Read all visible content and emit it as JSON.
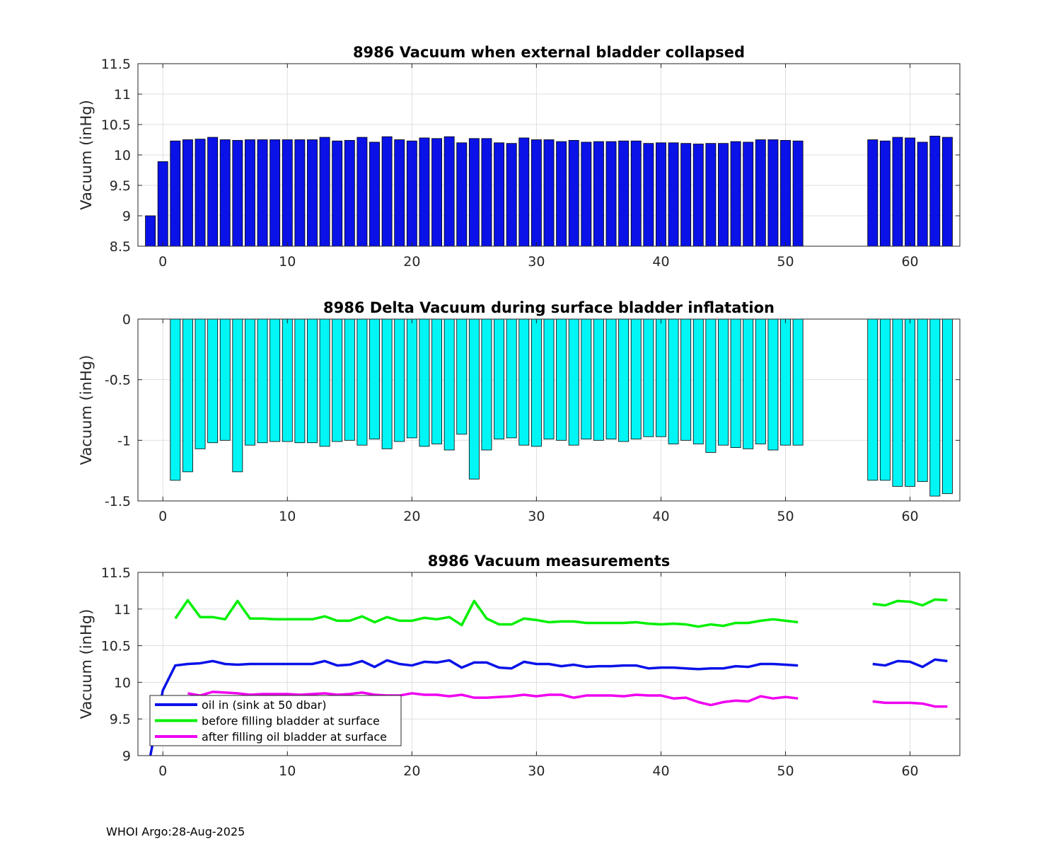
{
  "footer": "WHOI Argo:28-Aug-2025",
  "chart_data": [
    {
      "type": "bar",
      "title": "8986 Vacuum when external bladder collapsed",
      "xlabel": "",
      "ylabel": "Vacuum (inHg)",
      "xlim": [
        -2,
        64
      ],
      "ylim": [
        8.5,
        11.5
      ],
      "xticks": [
        0,
        10,
        20,
        30,
        40,
        50,
        60
      ],
      "yticks": [
        8.5,
        9,
        9.5,
        10,
        10.5,
        11,
        11.5
      ],
      "ytick_labels": [
        "8.5",
        "9",
        "9.5",
        "10",
        "10.5",
        "11",
        "11.5"
      ],
      "grid": true,
      "bar_color": "#0a12e8",
      "x": [
        -1,
        0,
        1,
        2,
        3,
        4,
        5,
        6,
        7,
        8,
        9,
        10,
        11,
        12,
        13,
        14,
        15,
        16,
        17,
        18,
        19,
        20,
        21,
        22,
        23,
        24,
        25,
        26,
        27,
        28,
        29,
        30,
        31,
        32,
        33,
        34,
        35,
        36,
        37,
        38,
        39,
        40,
        41,
        42,
        43,
        44,
        45,
        46,
        47,
        48,
        49,
        50,
        51,
        57,
        58,
        59,
        60,
        61,
        62,
        63
      ],
      "values": [
        9.0,
        9.89,
        10.23,
        10.25,
        10.26,
        10.29,
        10.25,
        10.24,
        10.25,
        10.25,
        10.25,
        10.25,
        10.25,
        10.25,
        10.29,
        10.23,
        10.24,
        10.29,
        10.21,
        10.3,
        10.25,
        10.23,
        10.28,
        10.27,
        10.3,
        10.2,
        10.27,
        10.27,
        10.2,
        10.19,
        10.28,
        10.25,
        10.25,
        10.22,
        10.24,
        10.21,
        10.22,
        10.22,
        10.23,
        10.23,
        10.19,
        10.2,
        10.2,
        10.19,
        10.18,
        10.19,
        10.19,
        10.22,
        10.21,
        10.25,
        10.25,
        10.24,
        10.23,
        10.25,
        10.23,
        10.29,
        10.28,
        10.21,
        10.31,
        10.29
      ]
    },
    {
      "type": "bar",
      "title": "8986 Delta Vacuum during surface bladder inflatation",
      "xlabel": "",
      "ylabel": "Vacuum (inHg)",
      "xlim": [
        -2,
        64
      ],
      "ylim": [
        -1.5,
        0
      ],
      "xticks": [
        0,
        10,
        20,
        30,
        40,
        50,
        60
      ],
      "yticks": [
        -1.5,
        -1,
        -0.5,
        0
      ],
      "ytick_labels": [
        "-1.5",
        "-1",
        "-0.5",
        "0"
      ],
      "grid": true,
      "bar_color": "#00f5f5",
      "x": [
        1,
        2,
        3,
        4,
        5,
        6,
        7,
        8,
        9,
        10,
        11,
        12,
        13,
        14,
        15,
        16,
        17,
        18,
        19,
        20,
        21,
        22,
        23,
        24,
        25,
        26,
        27,
        28,
        29,
        30,
        31,
        32,
        33,
        34,
        35,
        36,
        37,
        38,
        39,
        40,
        41,
        42,
        43,
        44,
        45,
        46,
        47,
        48,
        49,
        50,
        51,
        57,
        58,
        59,
        60,
        61,
        62,
        63
      ],
      "values": [
        -1.33,
        -1.26,
        -1.07,
        -1.02,
        -1.0,
        -1.26,
        -1.04,
        -1.02,
        -1.01,
        -1.01,
        -1.02,
        -1.02,
        -1.05,
        -1.01,
        -1.0,
        -1.04,
        -0.99,
        -1.07,
        -1.01,
        -0.98,
        -1.05,
        -1.03,
        -1.08,
        -0.95,
        -1.32,
        -1.08,
        -0.99,
        -0.98,
        -1.04,
        -1.05,
        -0.99,
        -1.0,
        -1.04,
        -0.99,
        -1.0,
        -0.99,
        -1.01,
        -0.99,
        -0.97,
        -0.97,
        -1.03,
        -1.0,
        -1.03,
        -1.1,
        -1.04,
        -1.06,
        -1.07,
        -1.03,
        -1.08,
        -1.04,
        -1.04,
        -1.33,
        -1.33,
        -1.38,
        -1.38,
        -1.34,
        -1.46,
        -1.44
      ]
    },
    {
      "type": "line",
      "title": "8986 Vacuum measurements",
      "xlabel": "",
      "ylabel": "Vacuum (inHg)",
      "xlim": [
        -2,
        64
      ],
      "ylim": [
        9,
        11.5
      ],
      "xticks": [
        0,
        10,
        20,
        30,
        40,
        50,
        60
      ],
      "yticks": [
        9,
        9.5,
        10,
        10.5,
        11,
        11.5
      ],
      "ytick_labels": [
        "9",
        "9.5",
        "10",
        "10.5",
        "11",
        "11.5"
      ],
      "grid": true,
      "legend_position": "lower-left",
      "series": [
        {
          "name": "oil in (sink at 50 dbar)",
          "color": "#0a12e8",
          "segments": [
            {
              "x": [
                -1,
                0,
                1,
                2,
                3,
                4,
                5,
                6,
                7,
                8,
                9,
                10,
                11,
                12,
                13,
                14,
                15,
                16,
                17,
                18,
                19,
                20,
                21,
                22,
                23,
                24,
                25,
                26,
                27,
                28,
                29,
                30,
                31,
                32,
                33,
                34,
                35,
                36,
                37,
                38,
                39,
                40,
                41,
                42,
                43,
                44,
                45,
                46,
                47,
                48,
                49,
                50,
                51
              ],
              "y": [
                9.0,
                9.89,
                10.23,
                10.25,
                10.26,
                10.29,
                10.25,
                10.24,
                10.25,
                10.25,
                10.25,
                10.25,
                10.25,
                10.25,
                10.29,
                10.23,
                10.24,
                10.29,
                10.21,
                10.3,
                10.25,
                10.23,
                10.28,
                10.27,
                10.3,
                10.2,
                10.27,
                10.27,
                10.2,
                10.19,
                10.28,
                10.25,
                10.25,
                10.22,
                10.24,
                10.21,
                10.22,
                10.22,
                10.23,
                10.23,
                10.19,
                10.2,
                10.2,
                10.19,
                10.18,
                10.19,
                10.19,
                10.22,
                10.21,
                10.25,
                10.25,
                10.24,
                10.23
              ]
            },
            {
              "x": [
                57,
                58,
                59,
                60,
                61,
                62,
                63
              ],
              "y": [
                10.25,
                10.23,
                10.29,
                10.28,
                10.21,
                10.31,
                10.29
              ]
            }
          ]
        },
        {
          "name": "before filling bladder at surface",
          "color": "#00f000",
          "segments": [
            {
              "x": [
                1,
                2,
                3,
                4,
                5,
                6,
                7,
                8,
                9,
                10,
                11,
                12,
                13,
                14,
                15,
                16,
                17,
                18,
                19,
                20,
                21,
                22,
                23,
                24,
                25,
                26,
                27,
                28,
                29,
                30,
                31,
                32,
                33,
                34,
                35,
                36,
                37,
                38,
                39,
                40,
                41,
                42,
                43,
                44,
                45,
                46,
                47,
                48,
                49,
                50,
                51
              ],
              "y": [
                10.87,
                11.12,
                10.89,
                10.89,
                10.86,
                11.11,
                10.87,
                10.87,
                10.86,
                10.86,
                10.86,
                10.86,
                10.9,
                10.84,
                10.84,
                10.9,
                10.82,
                10.89,
                10.84,
                10.84,
                10.88,
                10.86,
                10.89,
                10.78,
                11.11,
                10.87,
                10.79,
                10.79,
                10.87,
                10.85,
                10.82,
                10.83,
                10.83,
                10.81,
                10.81,
                10.81,
                10.81,
                10.82,
                10.8,
                10.79,
                10.8,
                10.79,
                10.76,
                10.79,
                10.77,
                10.81,
                10.81,
                10.84,
                10.86,
                10.84,
                10.82
              ]
            },
            {
              "x": [
                57,
                58,
                59,
                60,
                61,
                62,
                63
              ],
              "y": [
                11.07,
                11.05,
                11.11,
                11.1,
                11.05,
                11.13,
                11.12
              ]
            }
          ]
        },
        {
          "name": "after filling oil bladder at surface",
          "color": "#f000f0",
          "segments": [
            {
              "x": [
                2,
                3,
                4,
                5,
                6,
                7,
                8,
                9,
                10,
                11,
                12,
                13,
                14,
                15,
                16,
                17,
                18,
                19,
                20,
                21,
                22,
                23,
                24,
                25,
                26,
                27,
                28,
                29,
                30,
                31,
                32,
                33,
                34,
                35,
                36,
                37,
                38,
                39,
                40,
                41,
                42,
                43,
                44,
                45,
                46,
                47,
                48,
                49,
                50,
                51
              ],
              "y": [
                9.85,
                9.82,
                9.87,
                9.86,
                9.85,
                9.83,
                9.84,
                9.84,
                9.84,
                9.83,
                9.84,
                9.85,
                9.83,
                9.84,
                9.86,
                9.83,
                9.82,
                9.82,
                9.85,
                9.83,
                9.83,
                9.81,
                9.83,
                9.79,
                9.79,
                9.8,
                9.81,
                9.83,
                9.81,
                9.83,
                9.83,
                9.79,
                9.82,
                9.82,
                9.82,
                9.81,
                9.83,
                9.82,
                9.82,
                9.78,
                9.79,
                9.73,
                9.69,
                9.73,
                9.75,
                9.74,
                9.81,
                9.78,
                9.8,
                9.78
              ]
            },
            {
              "x": [
                57,
                58,
                59,
                60,
                61,
                62,
                63
              ],
              "y": [
                9.74,
                9.72,
                9.72,
                9.72,
                9.71,
                9.67,
                9.67
              ]
            }
          ]
        }
      ]
    }
  ]
}
